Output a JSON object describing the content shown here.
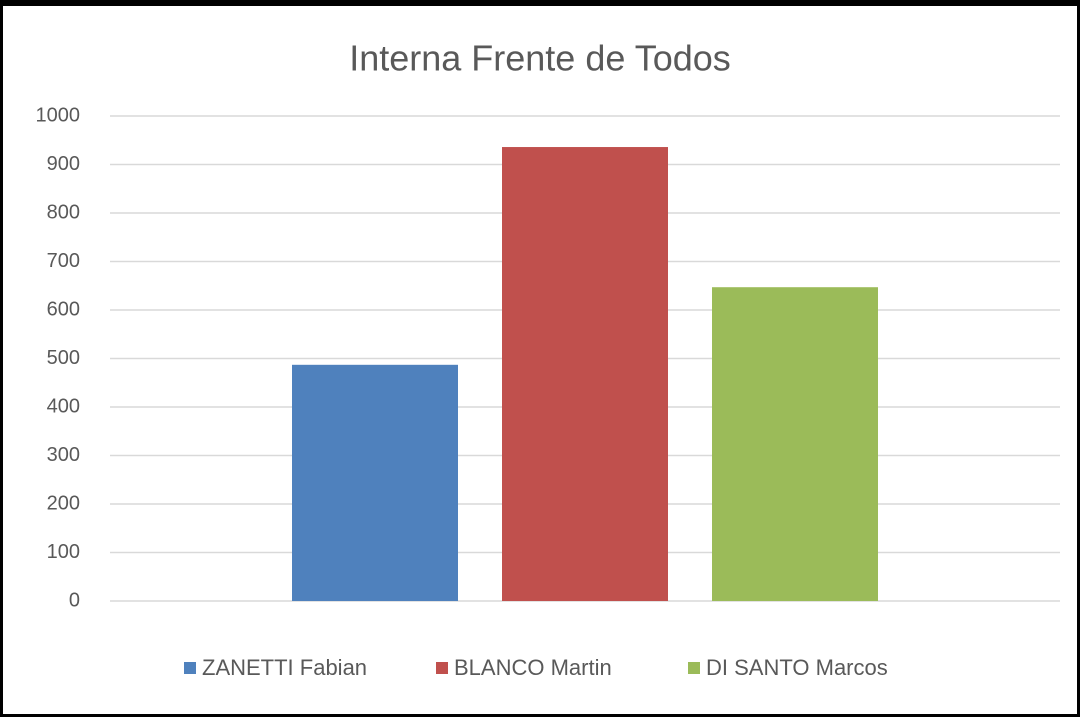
{
  "chart_data": {
    "type": "bar",
    "title": "Interna Frente de Todos",
    "categories": [
      null
    ],
    "series": [
      {
        "name": "ZANETTI Fabian",
        "color": "#4f81bd",
        "values": [
          487
        ]
      },
      {
        "name": "BLANCO Martin",
        "color": "#c0504d",
        "values": [
          936
        ]
      },
      {
        "name": "DI SANTO Marcos",
        "color": "#9bbb59",
        "values": [
          647
        ]
      }
    ],
    "ylim": [
      0,
      1000
    ],
    "yticks": [
      0,
      100,
      200,
      300,
      400,
      500,
      600,
      700,
      800,
      900,
      1000
    ],
    "grid": true,
    "legend": "bottom"
  }
}
